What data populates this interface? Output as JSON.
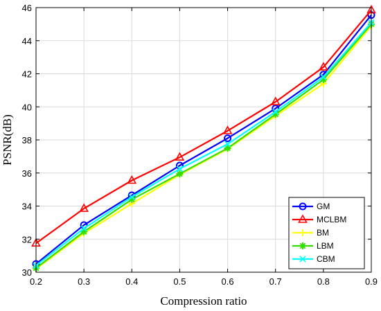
{
  "chart_data": {
    "type": "line",
    "title": "",
    "xlabel": "Compression ratio",
    "ylabel": "PSNR(dB)",
    "x": [
      0.2,
      0.3,
      0.4,
      0.5,
      0.6,
      0.7,
      0.8,
      0.9
    ],
    "xlim": [
      0.2,
      0.9
    ],
    "ylim": [
      30,
      46
    ],
    "xticks": [
      0.2,
      0.3,
      0.4,
      0.5,
      0.6,
      0.7,
      0.8,
      0.9
    ],
    "yticks": [
      30,
      32,
      34,
      36,
      38,
      40,
      42,
      44,
      46
    ],
    "xtick_labels": [
      "0.2",
      "0.3",
      "0.4",
      "0.5",
      "0.6",
      "0.7",
      "0.8",
      "0.9"
    ],
    "ytick_labels": [
      "30",
      "32",
      "34",
      "36",
      "38",
      "40",
      "42",
      "44",
      "46"
    ],
    "grid": true,
    "legend_position": "bottom-right",
    "series": [
      {
        "name": "GM",
        "color": "#0000ff",
        "marker": "circle",
        "values": [
          30.5,
          32.85,
          34.65,
          36.45,
          38.1,
          39.9,
          41.95,
          45.55
        ]
      },
      {
        "name": "MCLBM",
        "color": "#ff0000",
        "marker": "triangle",
        "values": [
          31.75,
          33.85,
          35.55,
          36.95,
          38.55,
          40.3,
          42.4,
          45.85
        ]
      },
      {
        "name": "BM",
        "color": "#ffff00",
        "marker": "plus",
        "values": [
          30.2,
          32.35,
          34.15,
          35.9,
          37.45,
          39.45,
          41.4,
          44.9
        ]
      },
      {
        "name": "LBM",
        "color": "#33dd00",
        "marker": "asterisk",
        "values": [
          30.25,
          32.45,
          34.4,
          35.95,
          37.5,
          39.55,
          41.65,
          45.0
        ]
      },
      {
        "name": "CBM",
        "color": "#00ffff",
        "marker": "x",
        "values": [
          30.4,
          32.65,
          34.55,
          36.25,
          37.75,
          39.7,
          41.8,
          45.1
        ]
      }
    ]
  }
}
